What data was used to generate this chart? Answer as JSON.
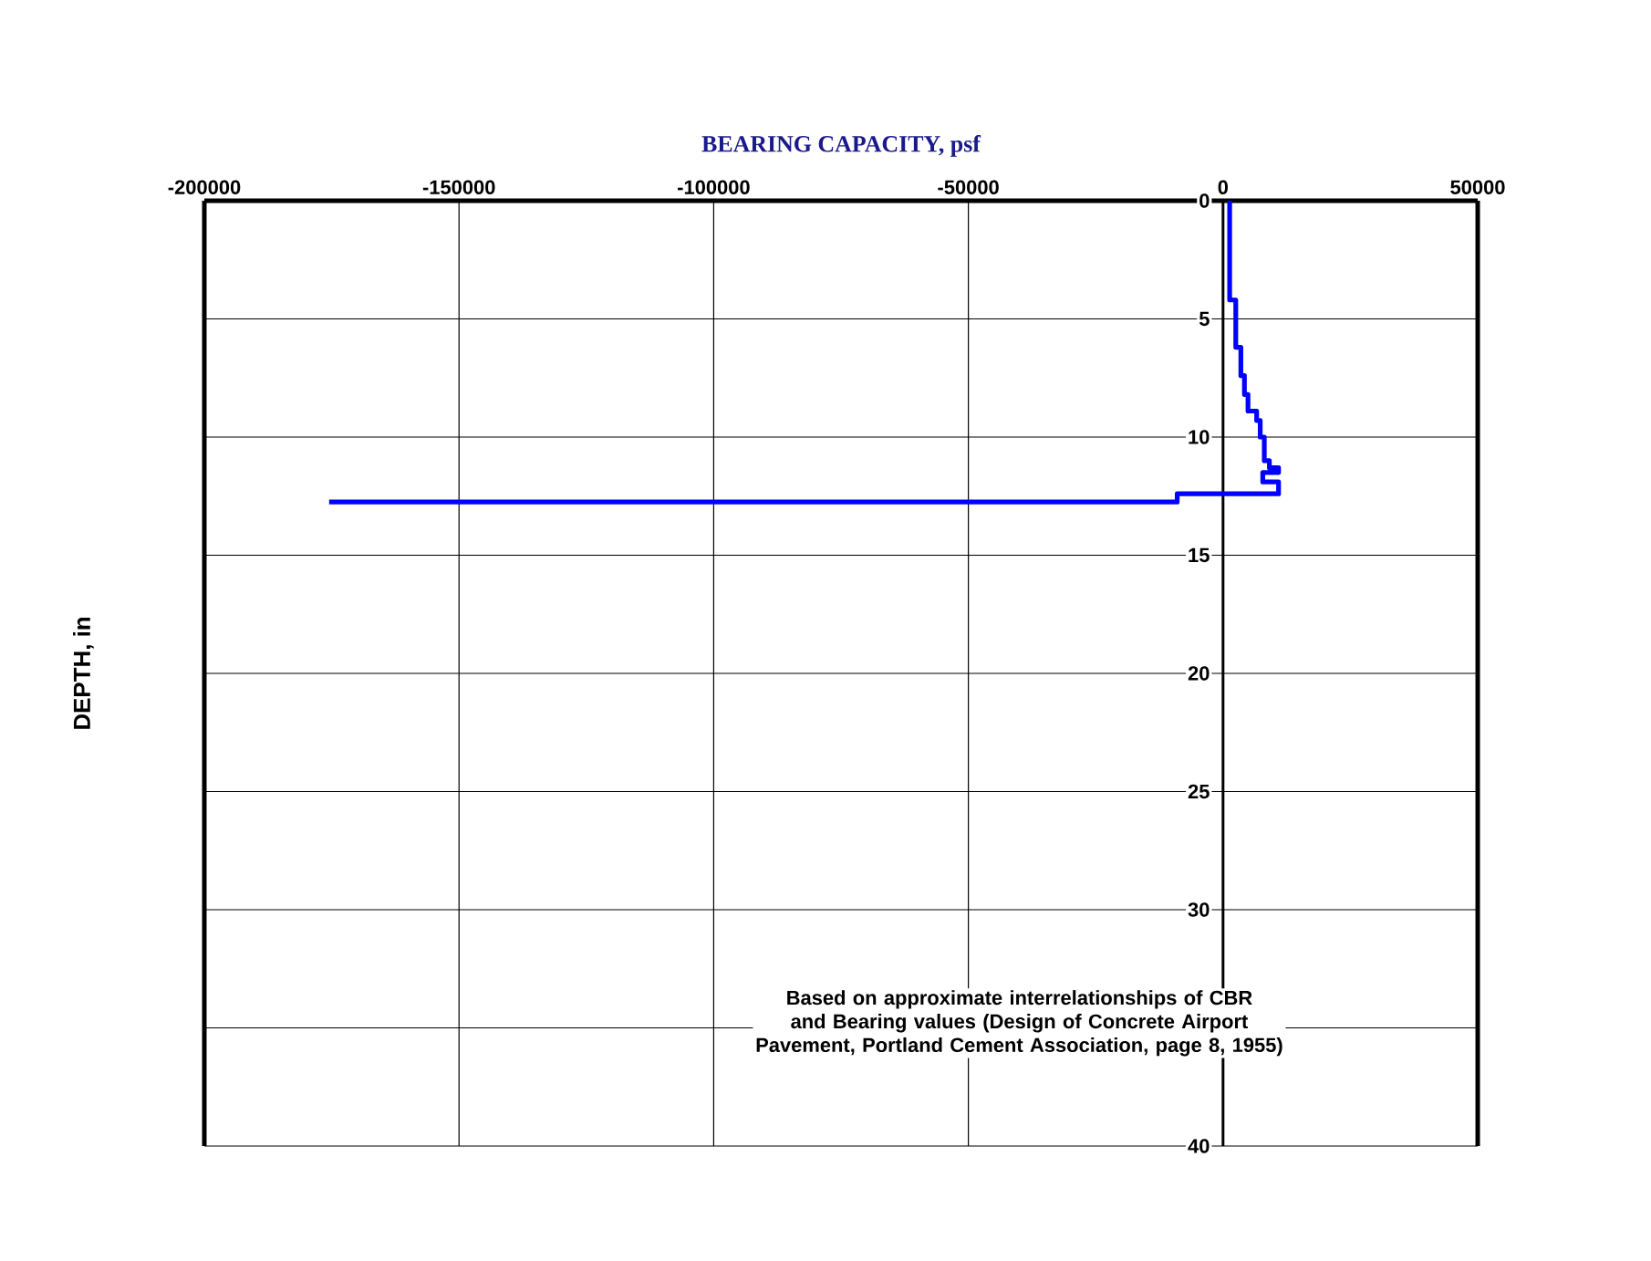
{
  "chart_data": {
    "type": "line",
    "xlabel": "BEARING CAPACITY, psf",
    "ylabel": "DEPTH, in",
    "x": [
      1300,
      1300,
      2500,
      2500,
      3500,
      3500,
      4200,
      4200,
      4900,
      4900,
      6600,
      6600,
      7300,
      7300,
      8100,
      8100,
      9100,
      9100,
      10900,
      10900,
      7800,
      7800,
      10900,
      10900,
      -9000,
      -9000,
      -175500
    ],
    "series": [
      {
        "color": "#0000ff",
        "values": [
          0,
          4.2,
          4.2,
          6.2,
          6.2,
          7.4,
          7.4,
          8.2,
          8.2,
          8.9,
          8.9,
          9.3,
          9.3,
          10.0,
          10.0,
          11.0,
          11.0,
          11.3,
          11.3,
          11.5,
          11.5,
          11.9,
          11.9,
          12.4,
          12.4,
          12.75,
          12.75
        ]
      }
    ],
    "xlim": [
      -200000,
      50000
    ],
    "xticks": [
      -200000,
      -150000,
      -100000,
      -50000,
      0,
      50000
    ],
    "ylim": [
      40,
      0
    ],
    "yticks": [
      0,
      5,
      10,
      15,
      20,
      25,
      30,
      {
        "value": 35,
        "label": null
      },
      40
    ],
    "grid": true,
    "marker": "none",
    "line_style": "solid",
    "annotations": [
      "Based on approximate interrelationships of CBR and Bearing values (Design of Concrete Airport Pavement, Portland Cement Association, page 8, 1955)"
    ]
  }
}
